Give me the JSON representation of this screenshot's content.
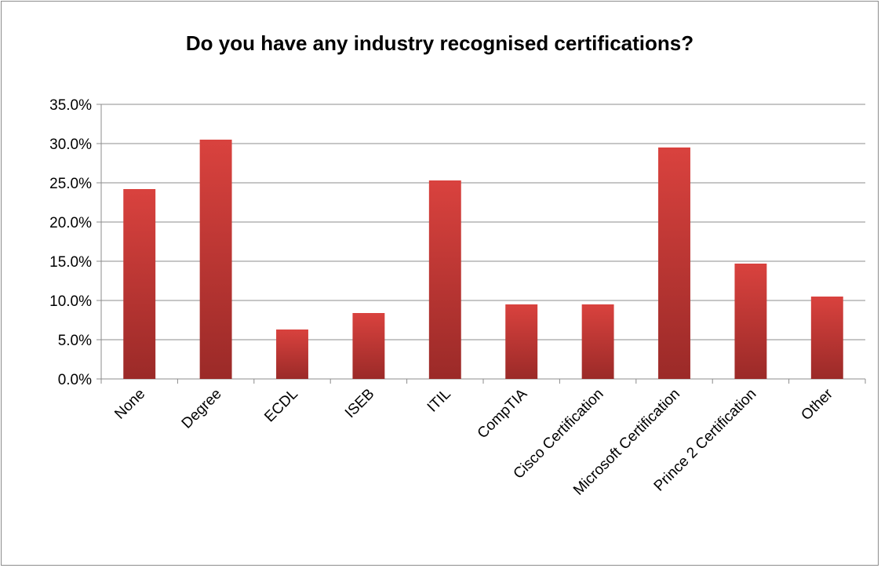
{
  "chart_data": {
    "type": "bar",
    "title": "Do you have any industry recognised certifications?",
    "categories": [
      "None",
      "Degree",
      "ECDL",
      "ISEB",
      "ITIL",
      "CompTIA",
      "Cisco Certification",
      "Microsoft Certification",
      "Prince 2 Certification",
      "Other"
    ],
    "values": [
      24.2,
      30.5,
      6.3,
      8.4,
      25.3,
      9.5,
      9.5,
      29.5,
      14.7,
      10.5
    ],
    "ylim": [
      0,
      35
    ],
    "yticks": [
      "0.0%",
      "5.0%",
      "10.0%",
      "15.0%",
      "20.0%",
      "25.0%",
      "30.0%",
      "35.0%"
    ],
    "grid": true,
    "bar_color_top": "#d9423e",
    "bar_color_bottom": "#9b2a28"
  }
}
